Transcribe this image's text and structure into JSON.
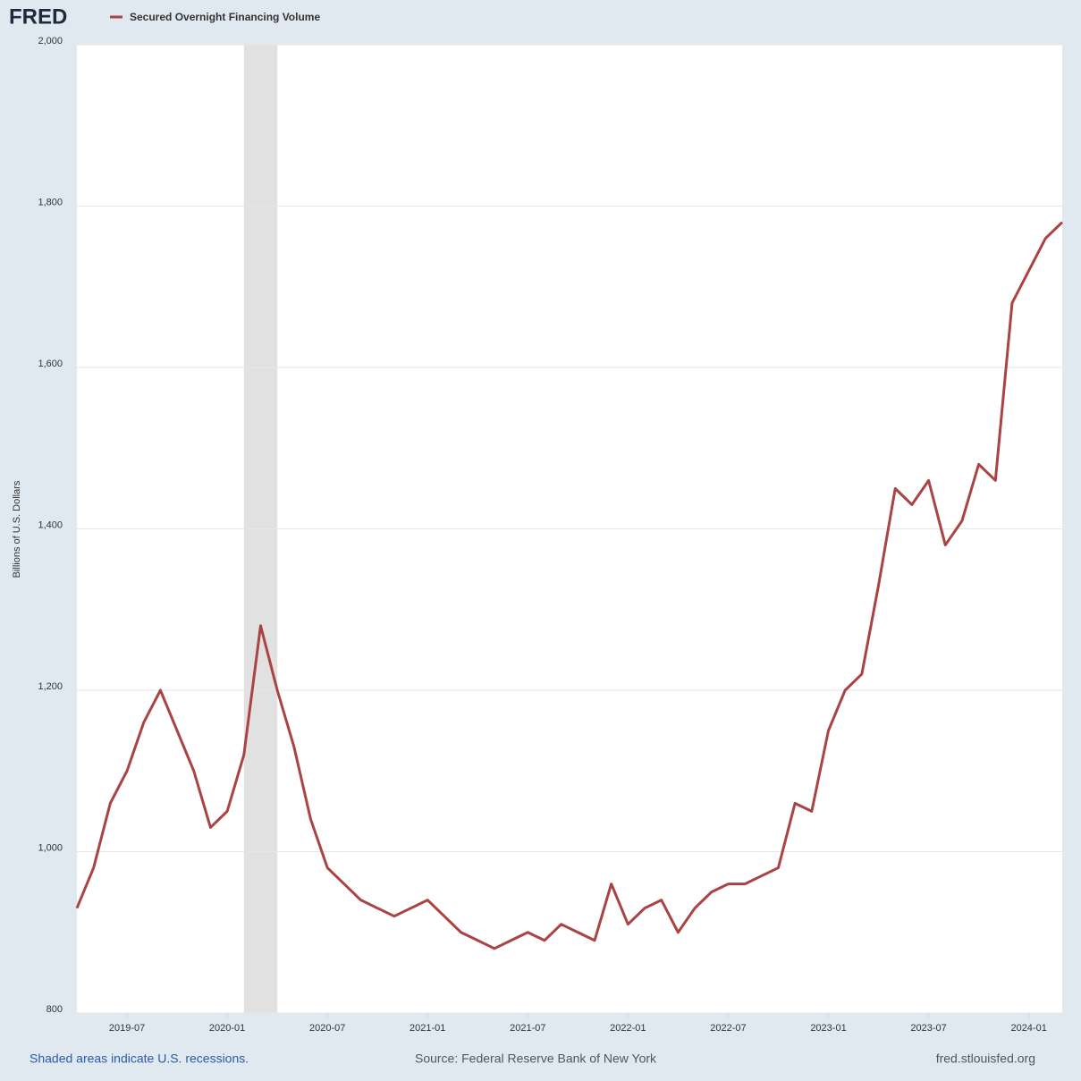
{
  "brand": "FRED",
  "footer": {
    "note": "Shaded areas indicate U.S. recessions.",
    "source": "Source: Federal Reserve Bank of New York",
    "site": "fred.stlouisfed.org"
  },
  "chart_data": {
    "type": "line",
    "title": "Secured Overnight Financing Volume",
    "y_label": "Billions of U.S. Dollars",
    "x": [
      "2019-04",
      "2019-05",
      "2019-06",
      "2019-07",
      "2019-08",
      "2019-09",
      "2019-10",
      "2019-11",
      "2019-12",
      "2020-01",
      "2020-02",
      "2020-03",
      "2020-04",
      "2020-05",
      "2020-06",
      "2020-07",
      "2020-08",
      "2020-09",
      "2020-10",
      "2020-11",
      "2020-12",
      "2021-01",
      "2021-02",
      "2021-03",
      "2021-04",
      "2021-05",
      "2021-06",
      "2021-07",
      "2021-08",
      "2021-09",
      "2021-10",
      "2021-11",
      "2021-12",
      "2022-01",
      "2022-02",
      "2022-03",
      "2022-04",
      "2022-05",
      "2022-06",
      "2022-07",
      "2022-08",
      "2022-09",
      "2022-10",
      "2022-11",
      "2022-12",
      "2023-01",
      "2023-02",
      "2023-03",
      "2023-04",
      "2023-05",
      "2023-06",
      "2023-07",
      "2023-08",
      "2023-09",
      "2023-10",
      "2023-11",
      "2023-12",
      "2024-01",
      "2024-02",
      "2024-03"
    ],
    "series": [
      {
        "name": "Secured Overnight Financing Volume",
        "color": "#aa4343",
        "values": [
          930,
          980,
          1060,
          1100,
          1160,
          1200,
          1150,
          1100,
          1030,
          1050,
          1120,
          1280,
          1200,
          1130,
          1040,
          980,
          960,
          940,
          930,
          920,
          930,
          940,
          920,
          900,
          890,
          880,
          890,
          900,
          890,
          910,
          900,
          890,
          960,
          910,
          930,
          940,
          900,
          930,
          950,
          960,
          960,
          970,
          980,
          1060,
          1050,
          1150,
          1200,
          1220,
          1330,
          1450,
          1430,
          1460,
          1380,
          1410,
          1480,
          1460,
          1680,
          1720,
          1760,
          1780
        ]
      }
    ],
    "xlim": [
      "2019-04",
      "2024-03"
    ],
    "xticks": [
      "2019-07",
      "2020-01",
      "2020-07",
      "2021-01",
      "2021-07",
      "2022-01",
      "2022-07",
      "2023-01",
      "2023-07",
      "2024-01"
    ],
    "ylim": [
      800,
      2000
    ],
    "yticks": [
      800,
      {
        "value": 1000,
        "label": "1,000"
      },
      {
        "value": 1200,
        "label": "1,200"
      },
      {
        "value": 1400,
        "label": "1,400"
      },
      {
        "value": 1600,
        "label": "1,600"
      },
      {
        "value": 1800,
        "label": "1,800"
      },
      {
        "value": 2000,
        "label": "2,000"
      }
    ],
    "recessions": [
      [
        "2020-02",
        "2020-04"
      ]
    ],
    "grid": true
  }
}
